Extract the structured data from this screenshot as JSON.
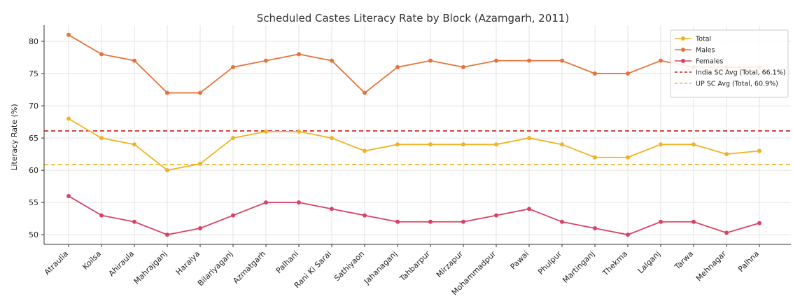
{
  "chart_data": {
    "type": "line",
    "title": "Scheduled Castes Literacy Rate by Block (Azamgarh, 2011)",
    "xlabel": "",
    "ylabel": "Literacy Rate (%)",
    "ylim": [
      48.5,
      82.5
    ],
    "yticks": [
      50,
      55,
      60,
      65,
      70,
      75,
      80
    ],
    "grid": true,
    "legend_position": "top-right",
    "categories": [
      "Atraulia",
      "Koilsa",
      "Ahiraula",
      "Mahrajganj",
      "Haraiya",
      "Bilariyaganj",
      "Azmatgarh",
      "Palhani",
      "Rani Ki Sarai",
      "Sathiyaon",
      "Jahanaganj",
      "Tahbarpur",
      "Mirzapur",
      "Mohammadpur",
      "Pawai",
      "Phulpur",
      "Martinganj",
      "Thekma",
      "Lalganj",
      "Tarwa",
      "Mehnagar",
      "Palhna"
    ],
    "series": [
      {
        "name": "Total",
        "color": "#f0b323",
        "values": [
          68,
          65,
          64,
          60,
          61,
          65,
          66,
          66,
          65,
          63,
          64,
          64,
          64,
          64,
          65,
          64,
          62,
          62,
          64,
          64,
          62.5,
          63
        ]
      },
      {
        "name": "Males",
        "color": "#e8733a",
        "values": [
          81,
          78,
          77,
          72,
          72,
          76,
          77,
          78,
          77,
          72,
          76,
          77,
          76,
          77,
          77,
          77,
          75,
          75,
          77,
          76,
          76,
          76
        ]
      },
      {
        "name": "Females",
        "color": "#d94266",
        "values": [
          56,
          53,
          52,
          50,
          51,
          53,
          55,
          55,
          54,
          53,
          52,
          52,
          52,
          53,
          54,
          52,
          51,
          50,
          52,
          52,
          50.3,
          51.8
        ]
      }
    ],
    "reference_lines": [
      {
        "name": "India SC Avg (Total, 66.1%)",
        "value": 66.1,
        "color": "#cc1f1f",
        "style": "dashed"
      },
      {
        "name": "UP SC Avg (Total, 60.9%)",
        "value": 60.9,
        "color": "#f0b323",
        "style": "dashed"
      }
    ]
  }
}
